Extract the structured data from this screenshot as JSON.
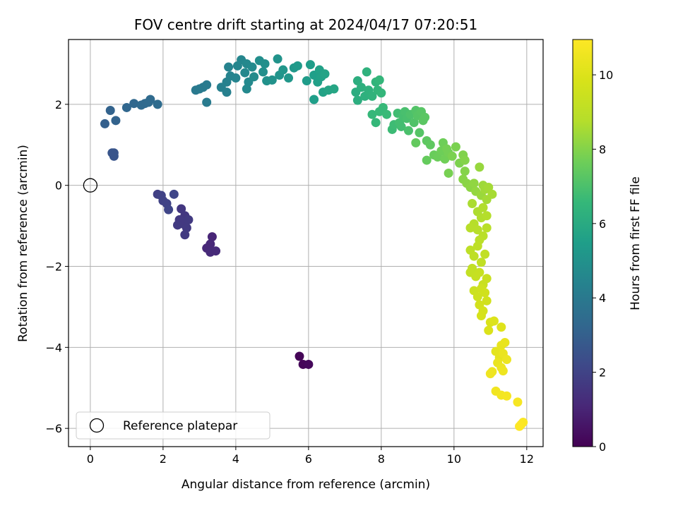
{
  "chart_data": {
    "type": "scatter",
    "title": "FOV centre drift starting at 2024/04/17 07:20:51",
    "xlabel": "Angular distance from reference (arcmin)",
    "ylabel": "Rotation from reference (arcmin)",
    "xlim": [
      -0.6,
      12.45
    ],
    "ylim": [
      -6.45,
      3.6
    ],
    "xticks": [
      0,
      2,
      4,
      6,
      8,
      10,
      12
    ],
    "yticks": [
      -6,
      -4,
      -2,
      0,
      2
    ],
    "grid": true,
    "legend": {
      "label": "Reference platepar",
      "placement": "lower-left"
    },
    "reference_point": {
      "x": 0,
      "y": 0
    },
    "colorbar": {
      "label": "Hours from first FF file",
      "range": [
        0,
        10.95
      ],
      "ticks": [
        0,
        2,
        4,
        6,
        8,
        10
      ],
      "colormap": "viridis"
    },
    "points": [
      {
        "x": 5.75,
        "y": -4.22,
        "c": 0.1
      },
      {
        "x": 5.85,
        "y": -4.42,
        "c": 0.15
      },
      {
        "x": 6.0,
        "y": -4.42,
        "c": 0.2
      },
      {
        "x": 3.35,
        "y": -1.27,
        "c": 1.05
      },
      {
        "x": 3.3,
        "y": -1.45,
        "c": 1.1
      },
      {
        "x": 3.2,
        "y": -1.55,
        "c": 1.1
      },
      {
        "x": 3.3,
        "y": -1.65,
        "c": 1.15
      },
      {
        "x": 3.45,
        "y": -1.62,
        "c": 1.15
      },
      {
        "x": 2.5,
        "y": -0.58,
        "c": 1.6
      },
      {
        "x": 2.6,
        "y": -0.75,
        "c": 1.6
      },
      {
        "x": 2.45,
        "y": -0.85,
        "c": 1.65
      },
      {
        "x": 2.55,
        "y": -0.95,
        "c": 1.65
      },
      {
        "x": 2.7,
        "y": -0.85,
        "c": 1.7
      },
      {
        "x": 2.65,
        "y": -1.05,
        "c": 1.7
      },
      {
        "x": 2.6,
        "y": -1.22,
        "c": 1.7
      },
      {
        "x": 2.4,
        "y": -0.98,
        "c": 1.7
      },
      {
        "x": 1.85,
        "y": -0.22,
        "c": 1.9
      },
      {
        "x": 1.95,
        "y": -0.25,
        "c": 1.95
      },
      {
        "x": 2.0,
        "y": -0.38,
        "c": 1.95
      },
      {
        "x": 2.1,
        "y": -0.45,
        "c": 2.0
      },
      {
        "x": 2.15,
        "y": -0.6,
        "c": 2.05
      },
      {
        "x": 2.3,
        "y": -0.22,
        "c": 2.1
      },
      {
        "x": 0.6,
        "y": 0.8,
        "c": 2.6
      },
      {
        "x": 0.65,
        "y": 0.72,
        "c": 2.6
      },
      {
        "x": 0.65,
        "y": 0.8,
        "c": 2.6
      },
      {
        "x": 0.4,
        "y": 1.52,
        "c": 3.0
      },
      {
        "x": 0.7,
        "y": 1.6,
        "c": 3.1
      },
      {
        "x": 0.55,
        "y": 1.85,
        "c": 3.1
      },
      {
        "x": 1.0,
        "y": 1.92,
        "c": 3.25
      },
      {
        "x": 1.2,
        "y": 2.02,
        "c": 3.3
      },
      {
        "x": 1.4,
        "y": 1.98,
        "c": 3.35
      },
      {
        "x": 1.5,
        "y": 2.02,
        "c": 3.35
      },
      {
        "x": 1.6,
        "y": 2.05,
        "c": 3.4
      },
      {
        "x": 1.65,
        "y": 2.12,
        "c": 3.4
      },
      {
        "x": 1.85,
        "y": 2.0,
        "c": 3.45
      },
      {
        "x": 2.9,
        "y": 2.35,
        "c": 4.0
      },
      {
        "x": 3.0,
        "y": 2.38,
        "c": 4.05
      },
      {
        "x": 3.1,
        "y": 2.42,
        "c": 4.05
      },
      {
        "x": 3.2,
        "y": 2.48,
        "c": 4.1
      },
      {
        "x": 3.2,
        "y": 2.05,
        "c": 4.1
      },
      {
        "x": 3.6,
        "y": 2.42,
        "c": 4.3
      },
      {
        "x": 3.75,
        "y": 2.3,
        "c": 4.3
      },
      {
        "x": 3.75,
        "y": 2.55,
        "c": 4.35
      },
      {
        "x": 3.85,
        "y": 2.7,
        "c": 4.4
      },
      {
        "x": 3.8,
        "y": 2.92,
        "c": 4.4
      },
      {
        "x": 4.0,
        "y": 2.65,
        "c": 4.45
      },
      {
        "x": 4.05,
        "y": 2.95,
        "c": 4.5
      },
      {
        "x": 4.15,
        "y": 3.1,
        "c": 4.55
      },
      {
        "x": 4.3,
        "y": 3.0,
        "c": 4.6
      },
      {
        "x": 4.25,
        "y": 2.78,
        "c": 4.6
      },
      {
        "x": 4.35,
        "y": 2.55,
        "c": 4.65
      },
      {
        "x": 4.3,
        "y": 2.38,
        "c": 4.65
      },
      {
        "x": 4.45,
        "y": 2.92,
        "c": 4.7
      },
      {
        "x": 4.5,
        "y": 2.68,
        "c": 4.75
      },
      {
        "x": 4.65,
        "y": 3.08,
        "c": 4.85
      },
      {
        "x": 4.8,
        "y": 3.0,
        "c": 4.9
      },
      {
        "x": 4.75,
        "y": 2.8,
        "c": 4.9
      },
      {
        "x": 4.85,
        "y": 2.58,
        "c": 4.95
      },
      {
        "x": 5.0,
        "y": 2.6,
        "c": 5.0
      },
      {
        "x": 5.15,
        "y": 3.12,
        "c": 5.05
      },
      {
        "x": 5.2,
        "y": 2.72,
        "c": 5.1
      },
      {
        "x": 5.3,
        "y": 2.85,
        "c": 5.15
      },
      {
        "x": 5.45,
        "y": 2.65,
        "c": 5.2
      },
      {
        "x": 5.6,
        "y": 2.9,
        "c": 5.25
      },
      {
        "x": 5.7,
        "y": 2.95,
        "c": 5.3
      },
      {
        "x": 5.95,
        "y": 2.58,
        "c": 5.4
      },
      {
        "x": 6.05,
        "y": 2.98,
        "c": 5.45
      },
      {
        "x": 6.15,
        "y": 2.72,
        "c": 5.5
      },
      {
        "x": 6.15,
        "y": 2.12,
        "c": 5.5
      },
      {
        "x": 6.25,
        "y": 2.55,
        "c": 5.55
      },
      {
        "x": 6.3,
        "y": 2.85,
        "c": 5.6
      },
      {
        "x": 6.35,
        "y": 2.68,
        "c": 5.6
      },
      {
        "x": 6.4,
        "y": 2.3,
        "c": 5.65
      },
      {
        "x": 6.45,
        "y": 2.75,
        "c": 5.7
      },
      {
        "x": 6.55,
        "y": 2.35,
        "c": 5.75
      },
      {
        "x": 6.7,
        "y": 2.38,
        "c": 5.8
      },
      {
        "x": 7.3,
        "y": 2.3,
        "c": 6.1
      },
      {
        "x": 7.35,
        "y": 2.58,
        "c": 6.15
      },
      {
        "x": 7.35,
        "y": 2.1,
        "c": 6.15
      },
      {
        "x": 7.45,
        "y": 2.42,
        "c": 6.2
      },
      {
        "x": 7.55,
        "y": 2.2,
        "c": 6.25
      },
      {
        "x": 7.6,
        "y": 2.8,
        "c": 6.3
      },
      {
        "x": 7.65,
        "y": 2.35,
        "c": 6.3
      },
      {
        "x": 7.75,
        "y": 2.2,
        "c": 6.35
      },
      {
        "x": 7.85,
        "y": 2.55,
        "c": 6.4
      },
      {
        "x": 7.9,
        "y": 2.35,
        "c": 6.45
      },
      {
        "x": 7.95,
        "y": 2.6,
        "c": 6.5
      },
      {
        "x": 8.0,
        "y": 2.28,
        "c": 6.5
      },
      {
        "x": 7.75,
        "y": 1.75,
        "c": 6.55
      },
      {
        "x": 7.85,
        "y": 1.55,
        "c": 6.55
      },
      {
        "x": 7.95,
        "y": 1.82,
        "c": 6.6
      },
      {
        "x": 8.05,
        "y": 1.92,
        "c": 6.6
      },
      {
        "x": 8.15,
        "y": 1.75,
        "c": 6.65
      },
      {
        "x": 8.3,
        "y": 1.38,
        "c": 6.7
      },
      {
        "x": 8.35,
        "y": 1.5,
        "c": 6.75
      },
      {
        "x": 8.45,
        "y": 1.78,
        "c": 6.8
      },
      {
        "x": 8.5,
        "y": 1.55,
        "c": 6.85
      },
      {
        "x": 8.55,
        "y": 1.45,
        "c": 6.85
      },
      {
        "x": 8.6,
        "y": 1.72,
        "c": 6.9
      },
      {
        "x": 8.65,
        "y": 1.82,
        "c": 6.95
      },
      {
        "x": 8.7,
        "y": 1.65,
        "c": 6.95
      },
      {
        "x": 8.75,
        "y": 1.35,
        "c": 7.0
      },
      {
        "x": 8.8,
        "y": 1.75,
        "c": 7.05
      },
      {
        "x": 8.9,
        "y": 1.55,
        "c": 7.1
      },
      {
        "x": 8.95,
        "y": 1.85,
        "c": 7.15
      },
      {
        "x": 9.0,
        "y": 1.72,
        "c": 7.2
      },
      {
        "x": 9.05,
        "y": 1.3,
        "c": 7.2
      },
      {
        "x": 9.1,
        "y": 1.82,
        "c": 7.25
      },
      {
        "x": 9.15,
        "y": 1.6,
        "c": 7.3
      },
      {
        "x": 9.2,
        "y": 1.68,
        "c": 7.3
      },
      {
        "x": 9.25,
        "y": 1.1,
        "c": 7.35
      },
      {
        "x": 9.35,
        "y": 1.0,
        "c": 7.4
      },
      {
        "x": 8.95,
        "y": 1.05,
        "c": 7.45
      },
      {
        "x": 9.25,
        "y": 0.62,
        "c": 7.5
      },
      {
        "x": 9.45,
        "y": 0.75,
        "c": 7.55
      },
      {
        "x": 9.55,
        "y": 0.7,
        "c": 7.6
      },
      {
        "x": 9.65,
        "y": 0.85,
        "c": 7.65
      },
      {
        "x": 9.7,
        "y": 1.05,
        "c": 7.65
      },
      {
        "x": 9.75,
        "y": 0.65,
        "c": 7.7
      },
      {
        "x": 9.8,
        "y": 0.9,
        "c": 7.75
      },
      {
        "x": 9.85,
        "y": 0.8,
        "c": 7.75
      },
      {
        "x": 9.85,
        "y": 0.3,
        "c": 7.8
      },
      {
        "x": 9.95,
        "y": 0.72,
        "c": 7.85
      },
      {
        "x": 10.05,
        "y": 0.95,
        "c": 7.85
      },
      {
        "x": 10.15,
        "y": 0.55,
        "c": 7.9
      },
      {
        "x": 10.25,
        "y": 0.75,
        "c": 7.95
      },
      {
        "x": 10.3,
        "y": 0.62,
        "c": 8.0
      },
      {
        "x": 10.3,
        "y": 0.35,
        "c": 8.0
      },
      {
        "x": 10.25,
        "y": 0.15,
        "c": 8.05
      },
      {
        "x": 10.35,
        "y": 0.05,
        "c": 8.1
      },
      {
        "x": 10.45,
        "y": -0.05,
        "c": 8.15
      },
      {
        "x": 10.55,
        "y": 0.05,
        "c": 8.2
      },
      {
        "x": 10.6,
        "y": -0.15,
        "c": 8.25
      },
      {
        "x": 10.7,
        "y": 0.45,
        "c": 8.3
      },
      {
        "x": 10.75,
        "y": -0.25,
        "c": 8.35
      },
      {
        "x": 10.8,
        "y": 0.0,
        "c": 8.4
      },
      {
        "x": 10.85,
        "y": -0.1,
        "c": 8.45
      },
      {
        "x": 10.9,
        "y": -0.35,
        "c": 8.5
      },
      {
        "x": 10.95,
        "y": -0.05,
        "c": 8.5
      },
      {
        "x": 11.05,
        "y": -0.22,
        "c": 8.55
      },
      {
        "x": 10.5,
        "y": -0.45,
        "c": 8.6
      },
      {
        "x": 10.65,
        "y": -0.65,
        "c": 8.65
      },
      {
        "x": 10.75,
        "y": -0.8,
        "c": 8.7
      },
      {
        "x": 10.8,
        "y": -0.55,
        "c": 8.7
      },
      {
        "x": 10.9,
        "y": -0.75,
        "c": 8.75
      },
      {
        "x": 10.55,
        "y": -0.95,
        "c": 8.8
      },
      {
        "x": 10.45,
        "y": -1.05,
        "c": 8.85
      },
      {
        "x": 10.65,
        "y": -1.1,
        "c": 8.85
      },
      {
        "x": 10.8,
        "y": -1.25,
        "c": 8.9
      },
      {
        "x": 10.9,
        "y": -1.05,
        "c": 8.9
      },
      {
        "x": 10.7,
        "y": -1.35,
        "c": 8.95
      },
      {
        "x": 10.45,
        "y": -1.6,
        "c": 9.0
      },
      {
        "x": 10.55,
        "y": -1.75,
        "c": 9.05
      },
      {
        "x": 10.65,
        "y": -1.5,
        "c": 9.05
      },
      {
        "x": 10.75,
        "y": -1.9,
        "c": 9.1
      },
      {
        "x": 10.85,
        "y": -1.7,
        "c": 9.15
      },
      {
        "x": 10.5,
        "y": -2.05,
        "c": 9.15
      },
      {
        "x": 10.45,
        "y": -2.15,
        "c": 9.2
      },
      {
        "x": 10.6,
        "y": -2.25,
        "c": 9.25
      },
      {
        "x": 10.7,
        "y": -2.15,
        "c": 9.3
      },
      {
        "x": 10.8,
        "y": -2.45,
        "c": 9.35
      },
      {
        "x": 10.9,
        "y": -2.3,
        "c": 9.4
      },
      {
        "x": 10.55,
        "y": -2.6,
        "c": 9.45
      },
      {
        "x": 10.65,
        "y": -2.75,
        "c": 9.5
      },
      {
        "x": 10.75,
        "y": -2.55,
        "c": 9.55
      },
      {
        "x": 10.85,
        "y": -2.65,
        "c": 9.6
      },
      {
        "x": 10.9,
        "y": -2.85,
        "c": 9.65
      },
      {
        "x": 10.7,
        "y": -2.95,
        "c": 9.7
      },
      {
        "x": 10.8,
        "y": -3.1,
        "c": 9.75
      },
      {
        "x": 10.75,
        "y": -3.22,
        "c": 9.8
      },
      {
        "x": 11.0,
        "y": -3.38,
        "c": 9.9
      },
      {
        "x": 10.95,
        "y": -3.58,
        "c": 9.95
      },
      {
        "x": 11.1,
        "y": -3.35,
        "c": 10.0
      },
      {
        "x": 11.3,
        "y": -3.5,
        "c": 10.05
      },
      {
        "x": 11.15,
        "y": -4.1,
        "c": 10.2
      },
      {
        "x": 11.25,
        "y": -4.25,
        "c": 10.25
      },
      {
        "x": 11.3,
        "y": -3.95,
        "c": 10.3
      },
      {
        "x": 11.4,
        "y": -3.88,
        "c": 10.35
      },
      {
        "x": 11.35,
        "y": -4.15,
        "c": 10.4
      },
      {
        "x": 11.2,
        "y": -4.38,
        "c": 10.4
      },
      {
        "x": 11.45,
        "y": -4.3,
        "c": 10.45
      },
      {
        "x": 11.3,
        "y": -4.5,
        "c": 10.45
      },
      {
        "x": 11.35,
        "y": -4.58,
        "c": 10.5
      },
      {
        "x": 11.05,
        "y": -4.6,
        "c": 10.5
      },
      {
        "x": 11.0,
        "y": -4.65,
        "c": 10.55
      },
      {
        "x": 11.15,
        "y": -5.08,
        "c": 10.6
      },
      {
        "x": 11.3,
        "y": -5.18,
        "c": 10.65
      },
      {
        "x": 11.45,
        "y": -5.2,
        "c": 10.7
      },
      {
        "x": 11.75,
        "y": -5.35,
        "c": 10.75
      },
      {
        "x": 11.9,
        "y": -5.85,
        "c": 10.85
      },
      {
        "x": 11.85,
        "y": -5.9,
        "c": 10.9
      },
      {
        "x": 11.8,
        "y": -5.95,
        "c": 10.95
      }
    ]
  }
}
